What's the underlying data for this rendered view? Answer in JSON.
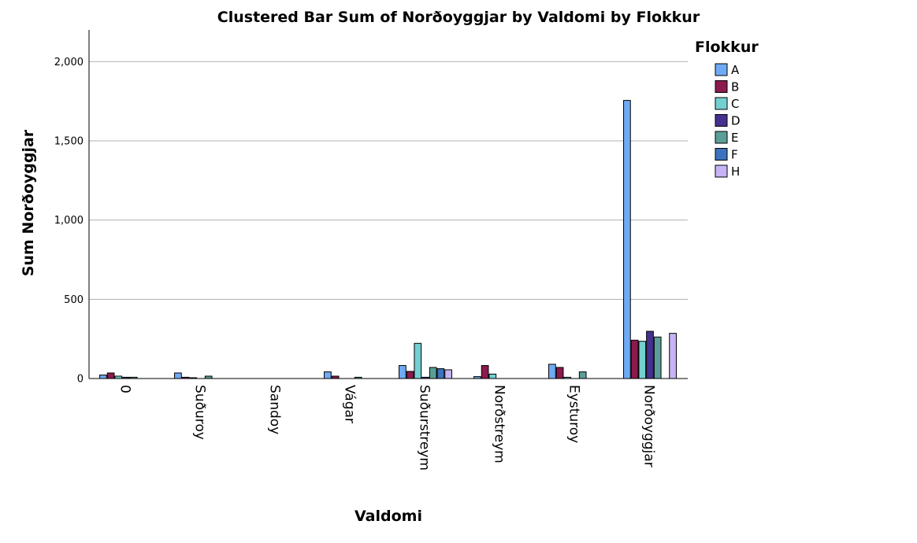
{
  "chart_data": {
    "type": "bar",
    "title": "Clustered Bar Sum of Norðoyggjar by Valdomi by Flokkur",
    "xlabel": "Valdomi",
    "ylabel": "Sum Norðoyggjar",
    "ylim": [
      0,
      2200
    ],
    "yticks": [
      0,
      500,
      1000,
      1500,
      2000
    ],
    "ytick_labels": [
      "0",
      "500",
      "1,000",
      "1,500",
      "2,000"
    ],
    "grid": true,
    "legend_title": "Flokkur",
    "legend_position": "right",
    "categories": [
      "0",
      "Suðuroy",
      "Sandoy",
      "Vágar",
      "Suðurstreym",
      "Norðstreym",
      "Eysturoy",
      "Norðoyggjar"
    ],
    "series": [
      {
        "name": "A",
        "color": "#6faaf4",
        "values": [
          22,
          35,
          null,
          42,
          82,
          12,
          90,
          1755
        ]
      },
      {
        "name": "B",
        "color": "#8b1a4e",
        "values": [
          35,
          8,
          null,
          15,
          45,
          82,
          70,
          242
        ]
      },
      {
        "name": "C",
        "color": "#74d0d0",
        "values": [
          15,
          5,
          null,
          null,
          222,
          28,
          8,
          235
        ]
      },
      {
        "name": "D",
        "color": "#45308f",
        "values": [
          8,
          null,
          null,
          null,
          8,
          null,
          null,
          298
        ]
      },
      {
        "name": "E",
        "color": "#5b9e98",
        "values": [
          8,
          15,
          null,
          8,
          70,
          null,
          42,
          262
        ]
      },
      {
        "name": "F",
        "color": "#3d72bd",
        "values": [
          null,
          null,
          null,
          null,
          62,
          null,
          null,
          null
        ]
      },
      {
        "name": "H",
        "color": "#c6b4f7",
        "values": [
          null,
          null,
          null,
          null,
          55,
          null,
          null,
          285
        ]
      }
    ]
  }
}
